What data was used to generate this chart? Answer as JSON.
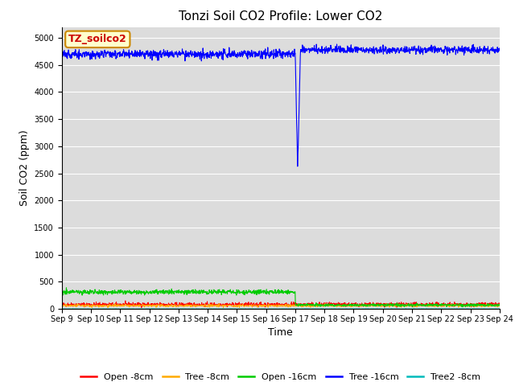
{
  "title": "Tonzi Soil CO2 Profile: Lower CO2",
  "xlabel": "Time",
  "ylabel": "Soil CO2 (ppm)",
  "ylim": [
    0,
    5200
  ],
  "yticks": [
    0,
    500,
    1000,
    1500,
    2000,
    2500,
    3000,
    3500,
    4000,
    4500,
    5000
  ],
  "background_color": "#dcdcdc",
  "legend_label_box": "TZ_soilco2",
  "legend_label_box_facecolor": "#ffffcc",
  "legend_label_box_edgecolor": "#cc8800",
  "series": {
    "open_8cm": {
      "label": "Open -8cm",
      "color": "#ff0000"
    },
    "tree_8cm": {
      "label": "Tree -8cm",
      "color": "#ffaa00"
    },
    "open_16cm": {
      "label": "Open -16cm",
      "color": "#00cc00"
    },
    "tree_16cm": {
      "label": "Tree -16cm",
      "color": "#0000ff"
    },
    "tree2_8cm": {
      "label": "Tree2 -8cm",
      "color": "#00bbbb"
    }
  },
  "title_fontsize": 11,
  "axis_fontsize": 9,
  "tick_fontsize": 7,
  "legend_fontsize": 8
}
